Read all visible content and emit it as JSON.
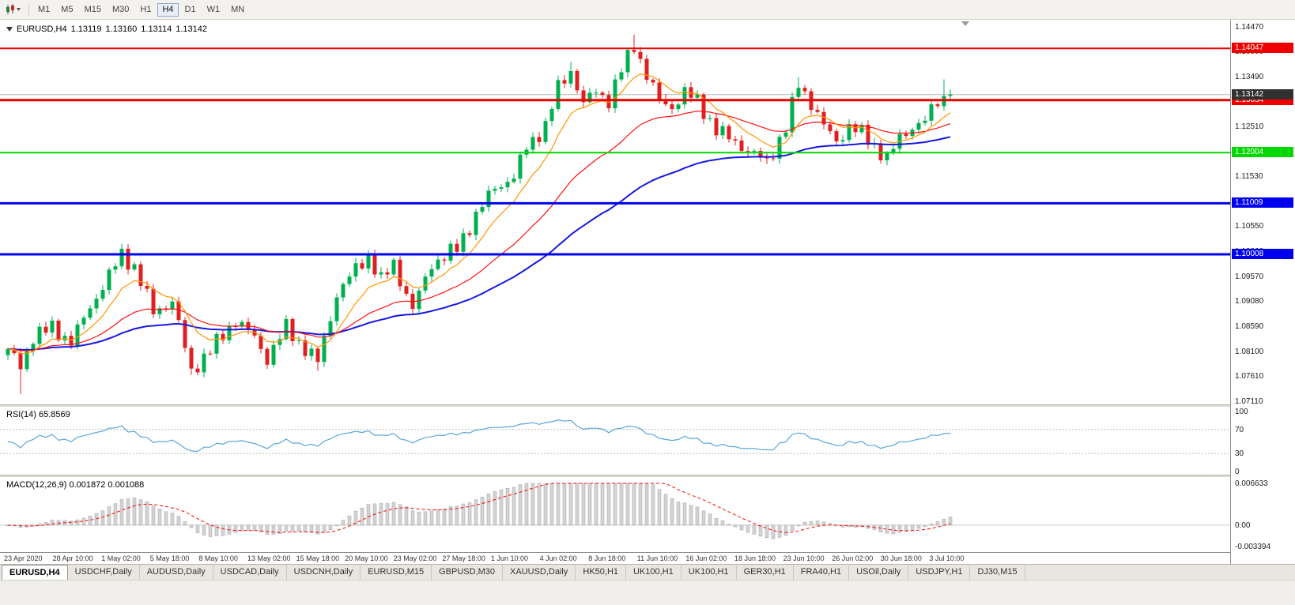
{
  "toolbar": {
    "timeframes": [
      "M1",
      "M5",
      "M15",
      "M30",
      "H1",
      "H4",
      "D1",
      "W1",
      "MN"
    ],
    "active_timeframe": "H4"
  },
  "chart": {
    "symbol_label": "EURUSD,H4",
    "ohlc": {
      "open": "1.13119",
      "high": "1.13160",
      "low": "1.13114",
      "close": "1.13142"
    },
    "price_axis_labels": [
      "1.14470",
      "1.13980",
      "1.13490",
      "1.13000",
      "1.12510",
      "1.12020",
      "1.11530",
      "1.11040",
      "1.10550",
      "1.10060",
      "1.09570",
      "1.09080",
      "1.08590",
      "1.08100",
      "1.07610",
      "1.07110"
    ],
    "price_axis_range": {
      "max": 1.1447,
      "min": 1.0711
    },
    "hlines": [
      {
        "price": 1.14047,
        "label": "1.14047",
        "color": "#ee0000",
        "width": 2
      },
      {
        "price": 1.13034,
        "label": "1.13034",
        "color": "#ee0000",
        "width": 3
      },
      {
        "price": 1.12004,
        "label": "1.12004",
        "color": "#00d800",
        "width": 2
      },
      {
        "price": 1.11009,
        "label": "1.11009",
        "color": "#0000ee",
        "width": 3
      },
      {
        "price": 1.10008,
        "label": "1.10008",
        "color": "#0000ee",
        "width": 3
      }
    ],
    "current_price": {
      "value": 1.13142,
      "label": "1.13142",
      "badge_color": "#303030",
      "line_color": "#b4b4b4"
    },
    "time_axis_labels": [
      "23 Apr 2020",
      "28 Apr 10:00",
      "1 May 02:00",
      "5 May 18:00",
      "8 May 10:00",
      "13 May 02:00",
      "15 May 18:00",
      "20 May 10:00",
      "23 May 02:00",
      "27 May 18:00",
      "1 Jun 10:00",
      "4 Jun 02:00",
      "8 Jun 18:00",
      "11 Jun 10:00",
      "16 Jun 02:00",
      "18 Jun 18:00",
      "23 Jun 10:00",
      "26 Jun 02:00",
      "30 Jun 18:00",
      "3 Jul 10:00"
    ]
  },
  "chart_data": {
    "type": "candlestick",
    "symbol": "EURUSD",
    "timeframe": "H4",
    "bars": 150,
    "close_anchors": [
      [
        0,
        1.0815
      ],
      [
        2,
        1.0782
      ],
      [
        4,
        1.0838
      ],
      [
        7,
        1.0858
      ],
      [
        10,
        1.0828
      ],
      [
        13,
        1.0898
      ],
      [
        16,
        1.0958
      ],
      [
        18,
        1.1002
      ],
      [
        20,
        1.0975
      ],
      [
        23,
        1.0888
      ],
      [
        26,
        1.0908
      ],
      [
        29,
        1.0772
      ],
      [
        32,
        1.0812
      ],
      [
        36,
        1.0872
      ],
      [
        39,
        1.0838
      ],
      [
        41,
        1.0796
      ],
      [
        44,
        1.0858
      ],
      [
        46,
        1.0828
      ],
      [
        49,
        1.079
      ],
      [
        52,
        1.0922
      ],
      [
        55,
        1.0972
      ],
      [
        57,
        1.0999
      ],
      [
        59,
        1.0949
      ],
      [
        61,
        1.0982
      ],
      [
        64,
        1.0893
      ],
      [
        67,
        1.0982
      ],
      [
        71,
        1.1012
      ],
      [
        74,
        1.1078
      ],
      [
        77,
        1.1132
      ],
      [
        80,
        1.1152
      ],
      [
        82,
        1.1212
      ],
      [
        85,
        1.1252
      ],
      [
        87,
        1.1328
      ],
      [
        89,
        1.1362
      ],
      [
        91,
        1.1295
      ],
      [
        93,
        1.1322
      ],
      [
        95,
        1.1302
      ],
      [
        97,
        1.1362
      ],
      [
        99,
        1.1412
      ],
      [
        101,
        1.1352
      ],
      [
        103,
        1.1302
      ],
      [
        105,
        1.129
      ],
      [
        107,
        1.1318
      ],
      [
        109,
        1.1302
      ],
      [
        112,
        1.1244
      ],
      [
        115,
        1.1222
      ],
      [
        118,
        1.1196
      ],
      [
        120,
        1.1182
      ],
      [
        123,
        1.1248
      ],
      [
        125,
        1.1335
      ],
      [
        127,
        1.1298
      ],
      [
        129,
        1.1252
      ],
      [
        131,
        1.1222
      ],
      [
        133,
        1.1252
      ],
      [
        135,
        1.1238
      ],
      [
        137,
        1.1214
      ],
      [
        139,
        1.1188
      ],
      [
        141,
        1.1228
      ],
      [
        143,
        1.1252
      ],
      [
        145,
        1.1262
      ],
      [
        147,
        1.1302
      ],
      [
        149,
        1.13142
      ]
    ],
    "wick_overrides": [
      {
        "bar": 2,
        "low": 1.0727
      },
      {
        "bar": 18,
        "high": 1.1017
      },
      {
        "bar": 29,
        "low": 1.0764
      },
      {
        "bar": 49,
        "low": 1.0772
      },
      {
        "bar": 57,
        "high": 1.1009
      },
      {
        "bar": 89,
        "high": 1.1378
      },
      {
        "bar": 99,
        "high": 1.1432
      },
      {
        "bar": 120,
        "low": 1.1178
      },
      {
        "bar": 125,
        "high": 1.1348
      },
      {
        "bar": 139,
        "low": 1.1185
      },
      {
        "bar": 148,
        "high": 1.1344
      }
    ],
    "colors": {
      "up": "#00b050",
      "down": "#e02020",
      "ma_fast": "#ff9500",
      "ma_med": "#ff1010",
      "ma_slow": "#1818e0"
    }
  },
  "rsi": {
    "label": "RSI(14) 65.8569",
    "period": "14",
    "value": "65.8569",
    "axis_labels": [
      "100",
      "70",
      "30",
      "0"
    ],
    "levels": [
      70,
      30
    ],
    "color": "#58a6d8"
  },
  "macd": {
    "label": "MACD(12,26,9) 0.001872 0.001088",
    "params": "12,26,9",
    "macd_value": "0.001872",
    "signal_value": "0.001088",
    "axis_max": 0.006633,
    "axis_min": -0.003394,
    "axis_labels": [
      "0.006633",
      "0.00",
      "-0.003394"
    ],
    "histogram_color": "#d4d4d4",
    "signal_color": "#ff0000"
  },
  "tabs": [
    {
      "label": "EURUSD,H4",
      "active": true
    },
    {
      "label": "USDCHF,Daily",
      "active": false
    },
    {
      "label": "AUDUSD,Daily",
      "active": false
    },
    {
      "label": "USDCAD,Daily",
      "active": false
    },
    {
      "label": "USDCNH,Daily",
      "active": false
    },
    {
      "label": "EURUSD,M15",
      "active": false
    },
    {
      "label": "GBPUSD,M30",
      "active": false
    },
    {
      "label": "XAUUSD,Daily",
      "active": false
    },
    {
      "label": "HK50,H1",
      "active": false
    },
    {
      "label": "UK100,H1",
      "active": false
    },
    {
      "label": "UK100,H1",
      "active": false
    },
    {
      "label": "GER30,H1",
      "active": false
    },
    {
      "label": "FRA40,H1",
      "active": false
    },
    {
      "label": "USOil,Daily",
      "active": false
    },
    {
      "label": "USDJPY,H1",
      "active": false
    },
    {
      "label": "DJ30,M15",
      "active": false
    }
  ]
}
